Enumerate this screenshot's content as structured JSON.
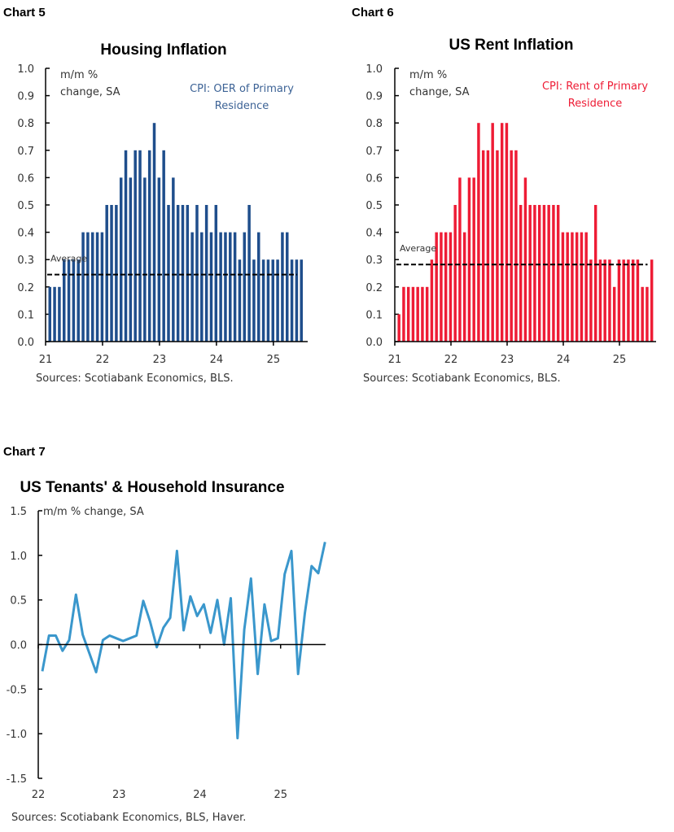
{
  "chart_data": [
    {
      "label": "Chart 5",
      "type": "bar",
      "title": "Housing Inflation",
      "ylabel_lines": [
        "m/m %",
        "change, SA"
      ],
      "series_name_lines": [
        "CPI: OER of Primary",
        "Residence"
      ],
      "series_color": "#1f4e8c",
      "x_start": "2021-01",
      "xtick_labels": [
        "21",
        "22",
        "23",
        "24",
        "25"
      ],
      "ylim": [
        0,
        1.0
      ],
      "ytick_labels": [
        "0.0",
        "0.1",
        "0.2",
        "0.3",
        "0.4",
        "0.5",
        "0.6",
        "0.7",
        "0.8",
        "0.9",
        "1.0"
      ],
      "values": [
        0.2,
        0.2,
        0.2,
        0.3,
        0.3,
        0.3,
        0.3,
        0.4,
        0.4,
        0.4,
        0.4,
        0.4,
        0.5,
        0.5,
        0.5,
        0.6,
        0.7,
        0.6,
        0.7,
        0.7,
        0.6,
        0.7,
        0.8,
        0.6,
        0.7,
        0.5,
        0.6,
        0.5,
        0.5,
        0.5,
        0.4,
        0.5,
        0.4,
        0.5,
        0.4,
        0.5,
        0.4,
        0.4,
        0.4,
        0.4,
        0.3,
        0.4,
        0.5,
        0.3,
        0.4,
        0.3,
        0.3,
        0.3,
        0.3,
        0.4,
        0.4,
        0.3,
        0.3,
        0.3
      ],
      "average": 0.245,
      "average_label": "Average",
      "source": "Sources: Scotiabank Economics, BLS."
    },
    {
      "label": "Chart 6",
      "type": "bar",
      "title": "US Rent Inflation",
      "ylabel_lines": [
        "m/m %",
        "change, SA"
      ],
      "series_name_lines": [
        "CPI: Rent of Primary",
        "Residence"
      ],
      "series_color": "#ee1c35",
      "x_start": "2021-01",
      "xtick_labels": [
        "21",
        "22",
        "23",
        "24",
        "25"
      ],
      "ylim": [
        0,
        1.0
      ],
      "ytick_labels": [
        "0.0",
        "0.1",
        "0.2",
        "0.3",
        "0.4",
        "0.5",
        "0.6",
        "0.7",
        "0.8",
        "0.9",
        "1.0"
      ],
      "values": [
        0.1,
        0.2,
        0.2,
        0.2,
        0.2,
        0.2,
        0.2,
        0.3,
        0.4,
        0.4,
        0.4,
        0.4,
        0.5,
        0.6,
        0.4,
        0.6,
        0.6,
        0.8,
        0.7,
        0.7,
        0.8,
        0.7,
        0.8,
        0.8,
        0.7,
        0.7,
        0.5,
        0.6,
        0.5,
        0.5,
        0.5,
        0.5,
        0.5,
        0.5,
        0.5,
        0.4,
        0.4,
        0.4,
        0.4,
        0.4,
        0.4,
        0.3,
        0.5,
        0.3,
        0.3,
        0.3,
        0.2,
        0.3,
        0.3,
        0.3,
        0.3,
        0.3,
        0.2,
        0.2,
        0.3
      ],
      "average": 0.282,
      "average_label": "Average",
      "source": "Sources: Scotiabank Economics, BLS."
    },
    {
      "label": "Chart 7",
      "type": "line",
      "title": "US Tenants' & Household Insurance",
      "ylabel": "m/m % change, SA",
      "series_color": "#3a97cc",
      "x_start": "2022-01",
      "xtick_labels": [
        "22",
        "23",
        "24",
        "25"
      ],
      "ylim": [
        -1.5,
        1.5
      ],
      "ytick_labels": [
        "-1.5",
        "-1.0",
        "-0.5",
        "0.0",
        "0.5",
        "1.0",
        "1.5"
      ],
      "values": [
        -0.3,
        0.1,
        0.1,
        -0.07,
        0.05,
        0.56,
        0.11,
        -0.1,
        -0.31,
        0.05,
        0.1,
        0.07,
        0.04,
        0.07,
        0.1,
        0.49,
        0.26,
        -0.03,
        0.19,
        0.3,
        1.05,
        0.16,
        0.54,
        0.32,
        0.45,
        0.13,
        0.5,
        0.0,
        0.52,
        -1.05,
        0.17,
        0.74,
        -0.33,
        0.45,
        0.04,
        0.07,
        0.79,
        1.05,
        -0.33,
        0.35,
        0.88,
        0.8,
        1.15
      ],
      "source": "Sources: Scotiabank Economics, BLS, Haver."
    }
  ]
}
